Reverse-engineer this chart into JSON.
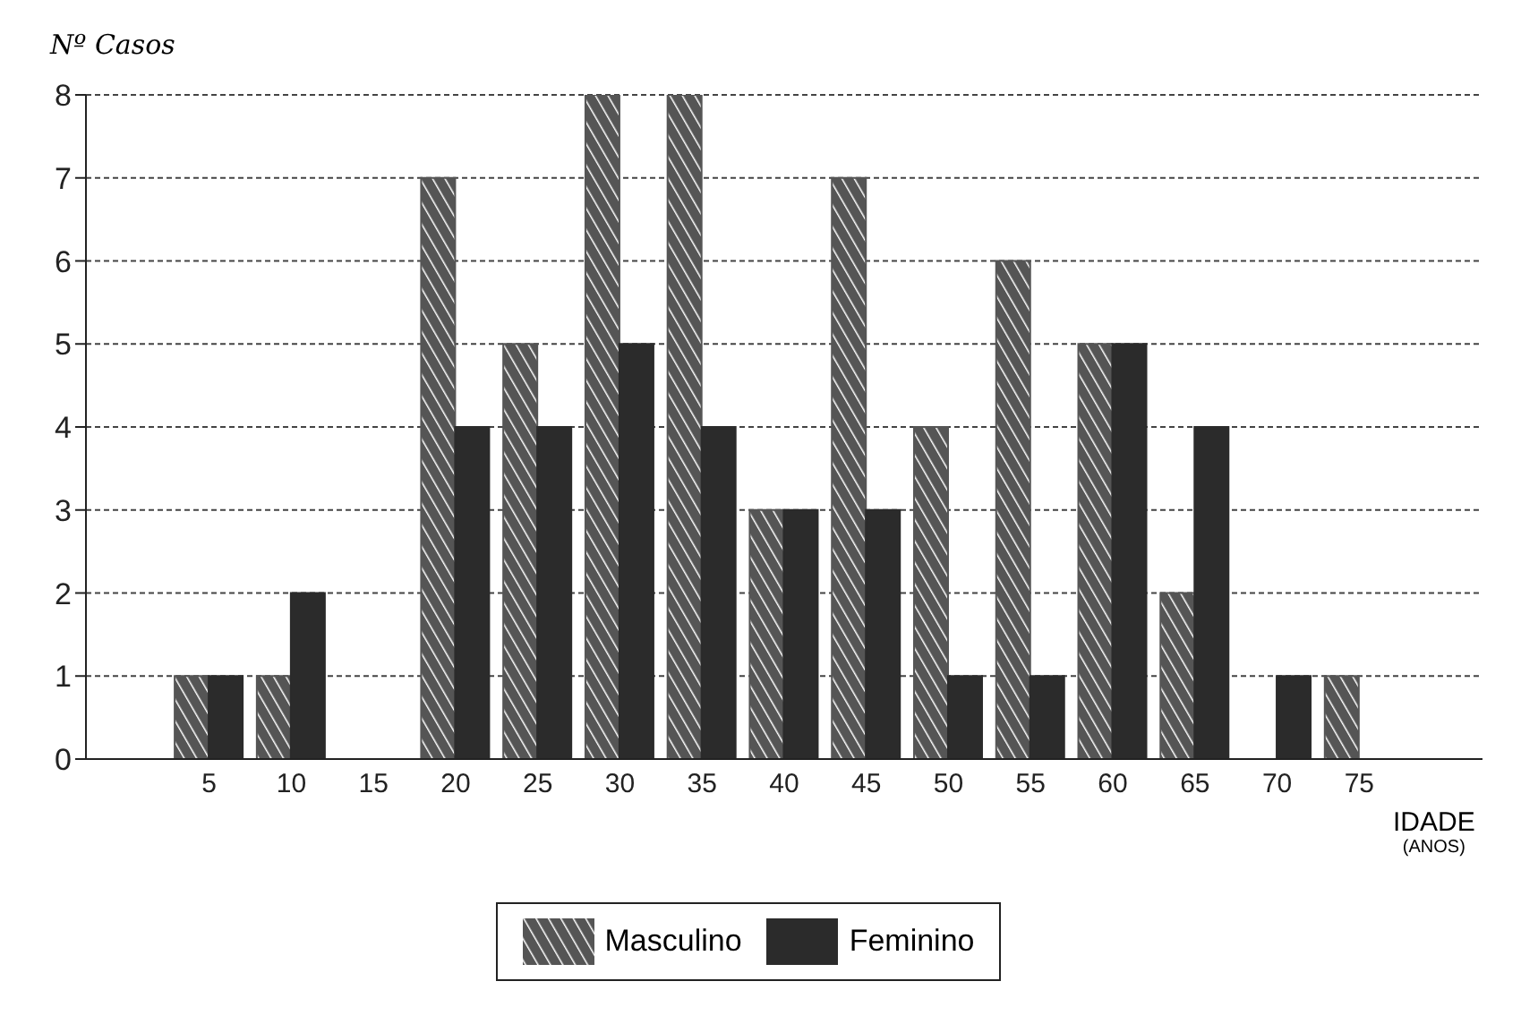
{
  "chart_data": {
    "type": "bar",
    "ylabel": "Nº Casos",
    "xlabel": "IDADE (ANOS)",
    "categories": [
      null,
      "5",
      "10",
      "15",
      "20",
      "25",
      "30",
      "35",
      "40",
      "45",
      "50",
      "55",
      "60",
      "65",
      "70",
      "75",
      null
    ],
    "series": [
      {
        "name": "Masculino",
        "color": "#555555",
        "values": [
          null,
          1,
          1,
          0,
          7,
          5,
          8,
          8,
          3,
          7,
          4,
          6,
          5,
          2,
          0,
          1,
          null
        ]
      },
      {
        "name": "Feminino",
        "color": "#2b2b2b",
        "values": [
          null,
          1,
          2,
          0,
          4,
          4,
          5,
          4,
          3,
          3,
          1,
          1,
          5,
          4,
          1,
          0,
          null
        ]
      }
    ],
    "ylim": [
      0,
      8
    ],
    "yticks": [
      0,
      1,
      2,
      3,
      4,
      5,
      6,
      7,
      8
    ],
    "grid": "y",
    "legend": "bottom"
  }
}
